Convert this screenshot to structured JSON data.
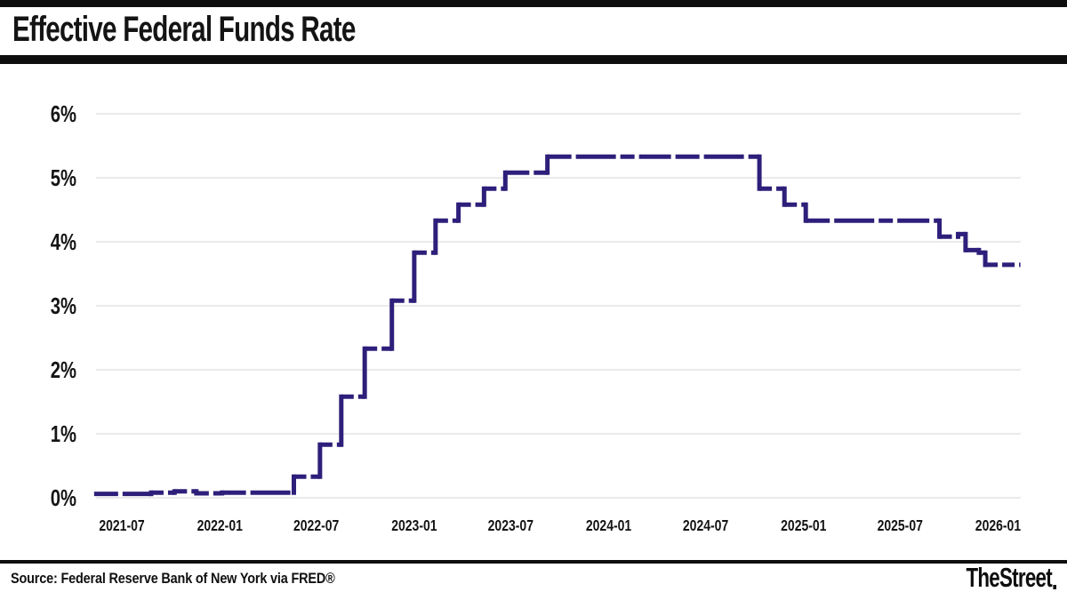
{
  "header": {
    "title": "Effective Federal Funds Rate"
  },
  "footer": {
    "source": "Source: Federal Reserve Bank of New York via FRED®",
    "brand": "TheStreet"
  },
  "colors": {
    "line": "#2d1f7a",
    "grid": "#e3e3e3",
    "bars": "#0e0e0e",
    "text": "#141414"
  },
  "chart_data": {
    "type": "line",
    "line_style": "step-after, dashed horizontals",
    "title": "Effective Federal Funds Rate",
    "xlabel": "",
    "ylabel": "",
    "legend": "none",
    "grid": "horizontal only",
    "y_ticks": [
      "6%",
      "5%",
      "4%",
      "3%",
      "2%",
      "1%",
      "0%"
    ],
    "ylim": [
      0,
      6
    ],
    "x_ticks": [
      "2021-07",
      "2022-01",
      "2022-07",
      "2023-01",
      "2023-07",
      "2024-01",
      "2024-07",
      "2025-01",
      "2025-07",
      "2026-01"
    ],
    "x_range": [
      "2021-05-10",
      "2026-02-12"
    ],
    "series_name": "Effective Federal Funds Rate (%)",
    "steps": [
      {
        "date": "2021-05-10",
        "value": 0.06
      },
      {
        "date": "2021-08-25",
        "value": 0.08
      },
      {
        "date": "2021-10-08",
        "value": 0.1
      },
      {
        "date": "2021-11-18",
        "value": 0.07
      },
      {
        "date": "2022-01-05",
        "value": 0.08
      },
      {
        "date": "2022-05-20",
        "value": 0.33
      },
      {
        "date": "2022-07-08",
        "value": 0.83
      },
      {
        "date": "2022-08-17",
        "value": 1.58
      },
      {
        "date": "2022-09-30",
        "value": 2.33
      },
      {
        "date": "2022-11-20",
        "value": 3.08
      },
      {
        "date": "2023-01-01",
        "value": 3.83
      },
      {
        "date": "2023-02-10",
        "value": 4.33
      },
      {
        "date": "2023-03-25",
        "value": 4.58
      },
      {
        "date": "2023-05-12",
        "value": 4.83
      },
      {
        "date": "2023-06-21",
        "value": 5.08
      },
      {
        "date": "2023-09-08",
        "value": 5.33
      },
      {
        "date": "2024-10-10",
        "value": 4.83
      },
      {
        "date": "2024-11-26",
        "value": 4.58
      },
      {
        "date": "2025-01-05",
        "value": 4.33
      },
      {
        "date": "2025-09-13",
        "value": 4.08
      },
      {
        "date": "2025-10-18",
        "value": 4.12
      },
      {
        "date": "2025-11-01",
        "value": 3.87
      },
      {
        "date": "2025-11-26",
        "value": 3.83
      },
      {
        "date": "2025-12-08",
        "value": 3.64
      },
      {
        "date": "2026-02-12",
        "value": 3.64
      }
    ]
  }
}
